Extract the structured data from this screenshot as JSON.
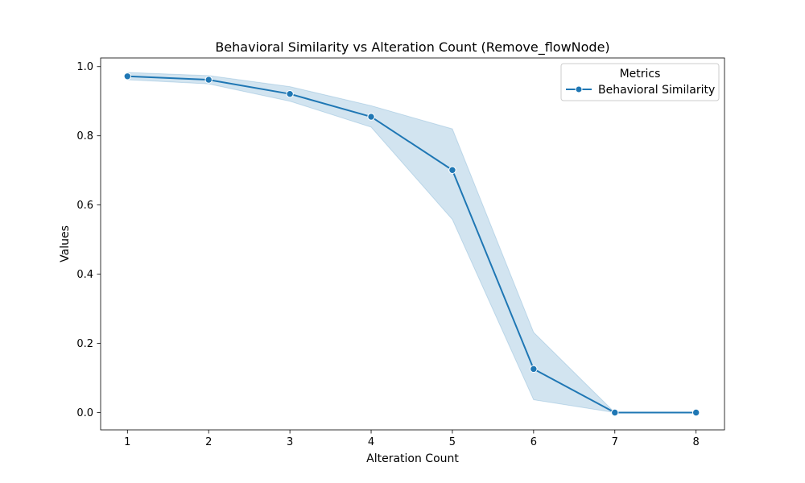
{
  "chart_data": {
    "type": "line",
    "title": "Behavioral Similarity vs Alteration Count (Remove_flowNode)",
    "xlabel": "Alteration Count",
    "ylabel": "Values",
    "xlim": [
      0.67,
      8.35
    ],
    "ylim": [
      -0.05,
      1.025
    ],
    "x_ticks": [
      1,
      2,
      3,
      4,
      5,
      6,
      7,
      8
    ],
    "y_ticks": [
      0.0,
      0.2,
      0.4,
      0.6,
      0.8,
      1.0
    ],
    "y_tick_labels": [
      "0.0",
      "0.2",
      "0.4",
      "0.6",
      "0.8",
      "1.0"
    ],
    "grid": false,
    "legend": {
      "title": "Metrics",
      "location": "top-right"
    },
    "series": [
      {
        "name": "Behavioral Similarity",
        "color": "#1f77b4",
        "marker": "circle",
        "x": [
          1,
          2,
          3,
          4,
          5,
          6,
          7,
          8
        ],
        "y": [
          0.972,
          0.962,
          0.921,
          0.855,
          0.701,
          0.126,
          0.0,
          0.0
        ],
        "ci_lower": [
          0.962,
          0.95,
          0.9,
          0.825,
          0.558,
          0.037,
          0.0,
          0.0
        ],
        "ci_upper": [
          0.983,
          0.974,
          0.942,
          0.887,
          0.82,
          0.232,
          0.0,
          0.0
        ]
      }
    ]
  }
}
